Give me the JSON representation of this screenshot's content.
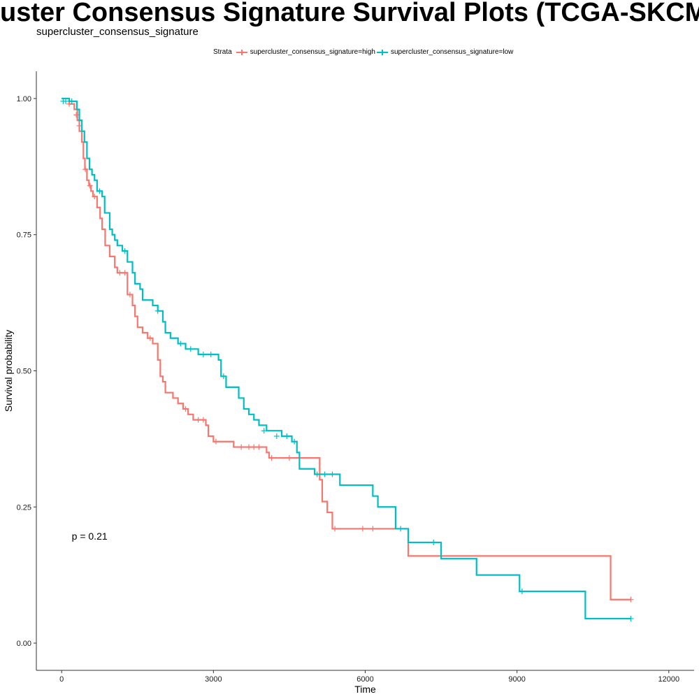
{
  "chart_data": {
    "type": "line",
    "title": "uster Consensus Signature Survival Plots (TCGA-SKCM Deco",
    "subtitle": "supercluster_consensus_signature",
    "xlabel": "Time",
    "ylabel": "Survival probability",
    "xlim": [
      -500,
      12500
    ],
    "ylim": [
      -0.05,
      1.05
    ],
    "x_ticks": [
      0,
      3000,
      6000,
      9000,
      12000
    ],
    "x_tick_labels": [
      "0",
      "3000",
      "6000",
      "9000",
      "12000"
    ],
    "y_ticks": [
      0,
      0.25,
      0.5,
      0.75,
      1.0
    ],
    "y_tick_labels": [
      "0.00",
      "0.25",
      "0.50",
      "0.75",
      "1.00"
    ],
    "grid": false,
    "legend": {
      "title": "Strata",
      "position": "top",
      "entries": [
        "supercluster_consensus_signature=high",
        "supercluster_consensus_signature=low"
      ]
    },
    "annotation": "p = 0.21",
    "annotation_pos": [
      200,
      0.19
    ],
    "series": [
      {
        "name": "supercluster_consensus_signature=high",
        "color": "#F8766D",
        "steps": [
          [
            0,
            1.0
          ],
          [
            150,
            0.99
          ],
          [
            250,
            0.98
          ],
          [
            310,
            0.96
          ],
          [
            350,
            0.94
          ],
          [
            400,
            0.92
          ],
          [
            430,
            0.89
          ],
          [
            460,
            0.87
          ],
          [
            500,
            0.85
          ],
          [
            540,
            0.84
          ],
          [
            580,
            0.83
          ],
          [
            620,
            0.82
          ],
          [
            700,
            0.8
          ],
          [
            760,
            0.78
          ],
          [
            800,
            0.76
          ],
          [
            860,
            0.73
          ],
          [
            950,
            0.71
          ],
          [
            1050,
            0.69
          ],
          [
            1100,
            0.68
          ],
          [
            1300,
            0.64
          ],
          [
            1400,
            0.62
          ],
          [
            1450,
            0.6
          ],
          [
            1500,
            0.58
          ],
          [
            1600,
            0.57
          ],
          [
            1700,
            0.56
          ],
          [
            1800,
            0.55
          ],
          [
            1900,
            0.52
          ],
          [
            1950,
            0.49
          ],
          [
            2000,
            0.48
          ],
          [
            2050,
            0.46
          ],
          [
            2200,
            0.45
          ],
          [
            2300,
            0.44
          ],
          [
            2400,
            0.43
          ],
          [
            2500,
            0.42
          ],
          [
            2600,
            0.41
          ],
          [
            2850,
            0.4
          ],
          [
            2900,
            0.38
          ],
          [
            3000,
            0.37
          ],
          [
            3400,
            0.36
          ],
          [
            4050,
            0.35
          ],
          [
            4100,
            0.34
          ],
          [
            5100,
            0.3
          ],
          [
            5150,
            0.26
          ],
          [
            5250,
            0.24
          ],
          [
            5350,
            0.21
          ],
          [
            6850,
            0.16
          ],
          [
            10850,
            0.08
          ],
          [
            11250,
            0.08
          ]
        ],
        "censors": [
          [
            150,
            0.99
          ],
          [
            290,
            0.97
          ],
          [
            350,
            0.95
          ],
          [
            470,
            0.87
          ],
          [
            560,
            0.84
          ],
          [
            650,
            0.82
          ],
          [
            1150,
            0.68
          ],
          [
            1250,
            0.68
          ],
          [
            1350,
            0.64
          ],
          [
            1750,
            0.56
          ],
          [
            2450,
            0.43
          ],
          [
            2700,
            0.41
          ],
          [
            2800,
            0.41
          ],
          [
            3050,
            0.37
          ],
          [
            3550,
            0.36
          ],
          [
            3700,
            0.36
          ],
          [
            3800,
            0.36
          ],
          [
            3900,
            0.36
          ],
          [
            4150,
            0.34
          ],
          [
            4500,
            0.34
          ],
          [
            5400,
            0.21
          ],
          [
            5950,
            0.21
          ],
          [
            6150,
            0.21
          ],
          [
            11250,
            0.08
          ]
        ]
      },
      {
        "name": "supercluster_consensus_signature=low",
        "color": "#00BFC4",
        "steps": [
          [
            0,
            1.0
          ],
          [
            150,
            0.995
          ],
          [
            300,
            0.98
          ],
          [
            350,
            0.96
          ],
          [
            400,
            0.94
          ],
          [
            450,
            0.92
          ],
          [
            500,
            0.89
          ],
          [
            550,
            0.87
          ],
          [
            600,
            0.86
          ],
          [
            650,
            0.85
          ],
          [
            700,
            0.83
          ],
          [
            800,
            0.82
          ],
          [
            850,
            0.79
          ],
          [
            950,
            0.76
          ],
          [
            1000,
            0.75
          ],
          [
            1050,
            0.74
          ],
          [
            1100,
            0.73
          ],
          [
            1200,
            0.72
          ],
          [
            1300,
            0.7
          ],
          [
            1400,
            0.68
          ],
          [
            1450,
            0.66
          ],
          [
            1550,
            0.65
          ],
          [
            1600,
            0.63
          ],
          [
            1800,
            0.62
          ],
          [
            1900,
            0.61
          ],
          [
            2000,
            0.59
          ],
          [
            2050,
            0.57
          ],
          [
            2150,
            0.56
          ],
          [
            2300,
            0.55
          ],
          [
            2450,
            0.54
          ],
          [
            2700,
            0.53
          ],
          [
            3100,
            0.52
          ],
          [
            3150,
            0.49
          ],
          [
            3250,
            0.47
          ],
          [
            3500,
            0.45
          ],
          [
            3600,
            0.43
          ],
          [
            3700,
            0.42
          ],
          [
            3800,
            0.41
          ],
          [
            3900,
            0.4
          ],
          [
            4050,
            0.39
          ],
          [
            4350,
            0.38
          ],
          [
            4550,
            0.37
          ],
          [
            4650,
            0.35
          ],
          [
            4700,
            0.32
          ],
          [
            5000,
            0.31
          ],
          [
            5500,
            0.29
          ],
          [
            6150,
            0.27
          ],
          [
            6250,
            0.25
          ],
          [
            6600,
            0.21
          ],
          [
            6850,
            0.185
          ],
          [
            7500,
            0.155
          ],
          [
            8200,
            0.125
          ],
          [
            9050,
            0.095
          ],
          [
            10350,
            0.045
          ],
          [
            11250,
            0.045
          ]
        ],
        "censors": [
          [
            30,
            0.995
          ],
          [
            80,
            0.995
          ],
          [
            200,
            0.995
          ],
          [
            750,
            0.83
          ],
          [
            1250,
            0.72
          ],
          [
            1900,
            0.61
          ],
          [
            2350,
            0.55
          ],
          [
            2550,
            0.54
          ],
          [
            2800,
            0.53
          ],
          [
            2950,
            0.53
          ],
          [
            3200,
            0.49
          ],
          [
            4000,
            0.39
          ],
          [
            4250,
            0.38
          ],
          [
            4450,
            0.38
          ],
          [
            4600,
            0.37
          ],
          [
            5050,
            0.31
          ],
          [
            5200,
            0.31
          ],
          [
            5350,
            0.31
          ],
          [
            6700,
            0.21
          ],
          [
            7350,
            0.185
          ],
          [
            9100,
            0.095
          ],
          [
            11250,
            0.045
          ]
        ]
      }
    ]
  }
}
